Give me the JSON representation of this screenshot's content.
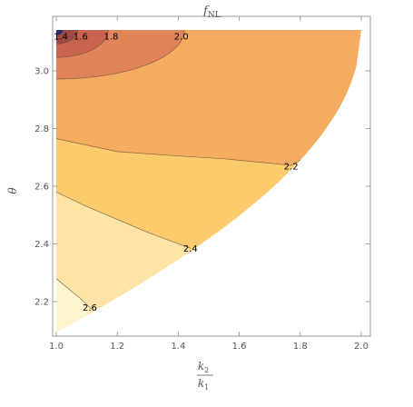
{
  "chart_data": {
    "type": "contour",
    "title": "f",
    "title_subscript": "NL",
    "xlabel_numerator": "k",
    "xlabel_numerator_sub": "2",
    "xlabel_denominator": "k",
    "xlabel_denominator_sub": "1",
    "ylabel": "θ",
    "xlim": [
      1.0,
      2.0
    ],
    "ylim": [
      2.09,
      3.1416
    ],
    "x_ticks": [
      "1.0",
      "1.2",
      "1.4",
      "1.6",
      "1.8",
      "2.0"
    ],
    "y_ticks": [
      "2.2",
      "2.4",
      "2.6",
      "2.8",
      "3.0"
    ],
    "domain": "theta >= pi - arccos((k2/k1)/2)",
    "bands": [
      {
        "range": "< 1.4",
        "color": "#2f2f72"
      },
      {
        "range": "1.4 - 1.6",
        "color": "#9e4a44"
      },
      {
        "range": "1.6 - 1.8",
        "color": "#c9654f"
      },
      {
        "range": "1.8 - 2.0",
        "color": "#e2845a"
      },
      {
        "range": "2.0 - 2.2",
        "color": "#f4ad60"
      },
      {
        "range": "2.2 - 2.4",
        "color": "#fbcb6c"
      },
      {
        "range": "2.4 - 2.6",
        "color": "#fde4a6"
      },
      {
        "range": "> 2.6",
        "color": "#fff5cc"
      }
    ],
    "contour_labels": [
      {
        "text": "1.4",
        "x": 1.015,
        "y": 3.12
      },
      {
        "text": "1.6",
        "x": 1.08,
        "y": 3.12
      },
      {
        "text": "1.8",
        "x": 1.18,
        "y": 3.12
      },
      {
        "text": "2.0",
        "x": 1.41,
        "y": 3.12
      },
      {
        "text": "2.2",
        "x": 1.77,
        "y": 2.67
      },
      {
        "text": "2.4",
        "x": 1.44,
        "y": 2.385
      },
      {
        "text": "2.6",
        "x": 1.11,
        "y": 2.18
      }
    ]
  }
}
